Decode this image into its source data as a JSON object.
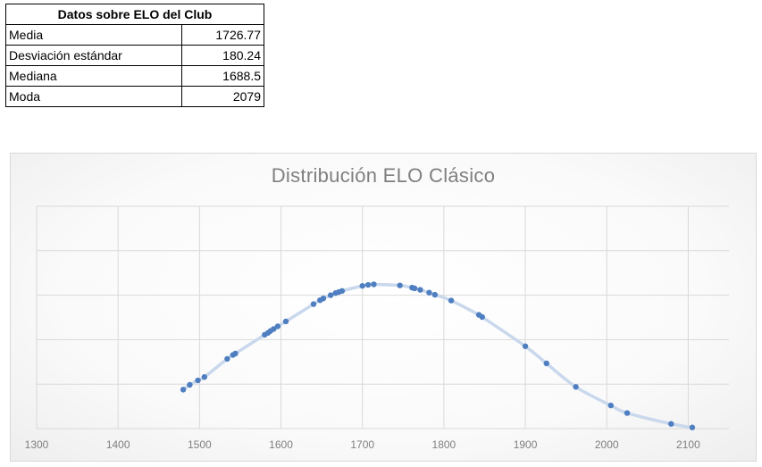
{
  "table": {
    "title": "Datos sobre ELO del Club",
    "rows": [
      {
        "label": "Media",
        "value": "1726.77"
      },
      {
        "label": "Desviación estándar",
        "value": "180.24"
      },
      {
        "label": "Mediana",
        "value": "1688.5"
      },
      {
        "label": "Moda",
        "value": "2079"
      }
    ]
  },
  "chart_data": {
    "type": "scatter",
    "title": "Distribución ELO Clásico",
    "xlabel": "",
    "ylabel": "",
    "xlim": [
      1300,
      2150
    ],
    "ylim": [
      0,
      0.0025
    ],
    "x_ticks": [
      "1300",
      "1400",
      "1500",
      "1600",
      "1700",
      "1800",
      "1900",
      "2000",
      "2100"
    ],
    "y_tick_labels_shown": false,
    "grid": true,
    "legend": "none",
    "trend_curve": {
      "type": "smooth line",
      "color": "#c9d8ec"
    },
    "point_color": "#4f7fc0",
    "series": [
      {
        "x": [
          1480,
          1488,
          1498,
          1506,
          1534,
          1541,
          1544,
          1580,
          1584,
          1587,
          1591,
          1596,
          1606,
          1640,
          1648,
          1652,
          1661,
          1667,
          1671,
          1675,
          1700,
          1707,
          1714,
          1746,
          1761,
          1764,
          1771,
          1782,
          1789,
          1809,
          1843,
          1847,
          1900,
          1926,
          1962,
          2005,
          2025,
          2079,
          2105
        ],
        "y": [
          0.000438,
          0.000492,
          0.000542,
          0.00058,
          0.000784,
          0.000828,
          0.000844,
          0.001055,
          0.001076,
          0.001097,
          0.00112,
          0.00115,
          0.001205,
          0.0014,
          0.001444,
          0.001464,
          0.0015,
          0.001524,
          0.001536,
          0.001548,
          0.001605,
          0.001616,
          0.001622,
          0.00161,
          0.001585,
          0.001577,
          0.00156,
          0.001529,
          0.001505,
          0.00144,
          0.001279,
          0.001255,
          0.000926,
          0.000733,
          0.000469,
          0.00026,
          0.000175,
          5.3e-05,
          1.3e-05
        ]
      }
    ]
  }
}
